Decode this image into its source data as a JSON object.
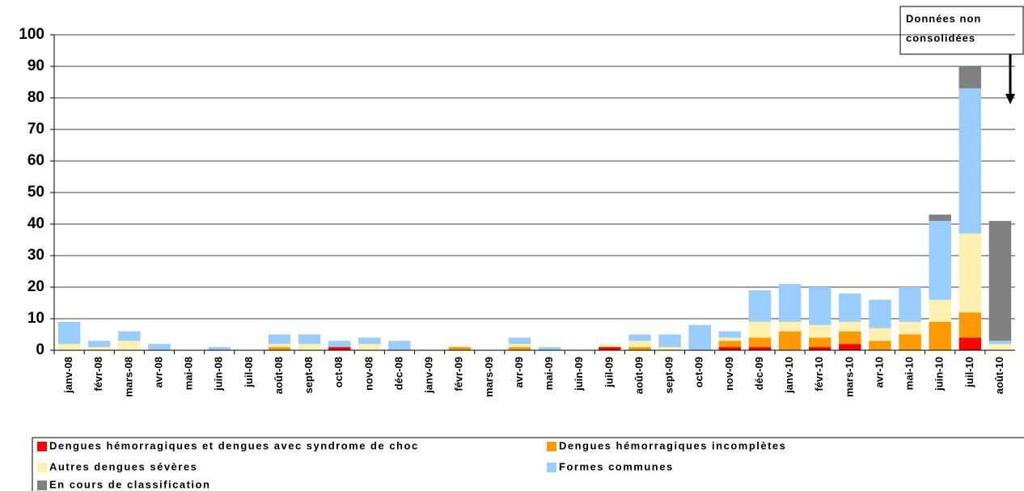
{
  "chart_data": {
    "type": "stacked-bar",
    "categories": [
      "janv-08",
      "févr-08",
      "mars-08",
      "avr-08",
      "mai-08",
      "juin-08",
      "juil-08",
      "août-08",
      "sept-08",
      "oct-08",
      "nov-08",
      "déc-08",
      "janv-09",
      "févr-09",
      "mars-09",
      "avr-09",
      "mai-09",
      "juin-09",
      "juil-09",
      "août-09",
      "sept-09",
      "oct-09",
      "nov-09",
      "déc-09",
      "janv-10",
      "févr-10",
      "mars-10",
      "avr-10",
      "mai-10",
      "juin-10",
      "juil-10",
      "août-10"
    ],
    "series": [
      {
        "name": "Dengues hémorragiques et dengues avec syndrome de choc",
        "color": "#ff0000",
        "values": [
          0,
          0,
          0,
          0,
          0,
          0,
          0,
          0,
          0,
          1,
          0,
          0,
          0,
          0,
          0,
          0,
          0,
          0,
          1,
          0,
          0,
          0,
          1,
          1,
          0,
          1,
          2,
          0,
          0,
          0,
          4,
          0
        ]
      },
      {
        "name": "Dengues hémorragiques incomplètes",
        "color": "#ff9900",
        "values": [
          0,
          0,
          0,
          0,
          0,
          0,
          0,
          1,
          0,
          0,
          0,
          0,
          0,
          1,
          0,
          1,
          0,
          0,
          0,
          1,
          0,
          0,
          2,
          3,
          6,
          3,
          4,
          3,
          5,
          9,
          8,
          0
        ]
      },
      {
        "name": "Autres dengues sévères",
        "color": "#fff0b0",
        "values": [
          2,
          1,
          3,
          0,
          0,
          0,
          0,
          1,
          2,
          0,
          2,
          0,
          0,
          0,
          0,
          1,
          0,
          0,
          1,
          2,
          1,
          0,
          1,
          5,
          3,
          4,
          3,
          4,
          4,
          7,
          25,
          2
        ]
      },
      {
        "name": "Formes communes",
        "color": "#99ccff",
        "values": [
          7,
          2,
          3,
          2,
          0,
          1,
          0,
          3,
          3,
          2,
          2,
          3,
          0,
          0,
          0,
          2,
          1,
          0,
          0,
          2,
          4,
          8,
          2,
          10,
          12,
          12,
          9,
          9,
          11,
          25,
          46,
          1
        ]
      },
      {
        "name": "En cours de classification",
        "color": "#808080",
        "values": [
          0,
          0,
          0,
          0,
          0,
          0,
          0,
          0,
          0,
          0,
          0,
          0,
          0,
          0,
          0,
          0,
          0,
          0,
          0,
          0,
          0,
          0,
          0,
          0,
          0,
          0,
          0,
          0,
          0,
          2,
          7,
          38
        ]
      }
    ],
    "ylim": [
      0,
      100
    ],
    "yticks": [
      0,
      10,
      20,
      30,
      40,
      50,
      60,
      70,
      80,
      90,
      100
    ],
    "grid": true,
    "annotation": [
      "Données non",
      "consolidées"
    ]
  }
}
